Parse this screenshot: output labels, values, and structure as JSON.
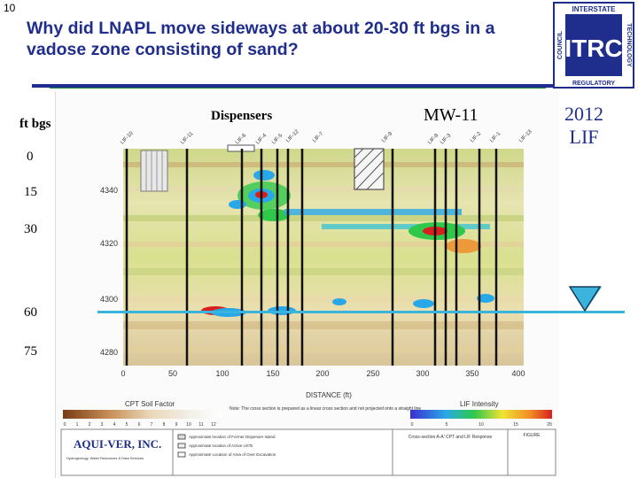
{
  "slide": {
    "number": "10",
    "title": "Why did LNAPL move sideways at about 20-30 ft bgs in a vadose zone consisting of sand?"
  },
  "logo": {
    "text_top": "INTERSTATE",
    "text_left": "COUNCIL",
    "text_right": "TECHNOLOGY",
    "text_bottom": "REGULATORY",
    "mark": "ITRC"
  },
  "depth_labels": {
    "header": "ft bgs",
    "values": [
      "0",
      "15",
      "30",
      "60",
      "75"
    ]
  },
  "annotations": {
    "dispensers": "Dispensers",
    "mw11": "MW-11",
    "lif_line1": "2012",
    "lif_line2": "LIF"
  },
  "figure": {
    "y_ticks": [
      "4340",
      "4320",
      "4300",
      "4280"
    ],
    "x_ticks": [
      "0",
      "50",
      "100",
      "150",
      "200",
      "250",
      "300",
      "350",
      "400"
    ],
    "x_axis_label": "DISTANCE (ft)",
    "legend_left_title": "CPT Soil Factor",
    "legend_left_ticks": [
      "0",
      "1",
      "2",
      "3",
      "4",
      "5",
      "6",
      "7",
      "8",
      "9",
      "10",
      "11",
      "12"
    ],
    "legend_right_title": "LIF Intensity",
    "legend_right_ticks": [
      "0",
      "5",
      "10",
      "15",
      "20"
    ],
    "company": "AQUI-VER, INC.",
    "company_tagline": "Hydrogeology, Water Resources & Data Services",
    "boring_labels": [
      "LIF-10",
      "LIF-11",
      "LIF-6",
      "LIF-4",
      "LIF-5",
      "LIF-12",
      "LIF-7",
      "LIF-9",
      "LIF-8",
      "LIF-3",
      "LIF-2",
      "LIF-1",
      "LIF-13"
    ],
    "note_text": "Note: The cross section is prepared as a linear cross section and not projected onto a straight line",
    "legend_items": [
      "Approximate location of Former Dispenser Island",
      "Approximate location of Active USTs",
      "Approximate Location of Area of Over Excavation"
    ],
    "title_block": "Cross-section A-A' CPT and LIF Response",
    "figure_label": "FIGURE"
  },
  "colors": {
    "title": "#1f2e8c",
    "water_table": "#3ab4dc"
  }
}
